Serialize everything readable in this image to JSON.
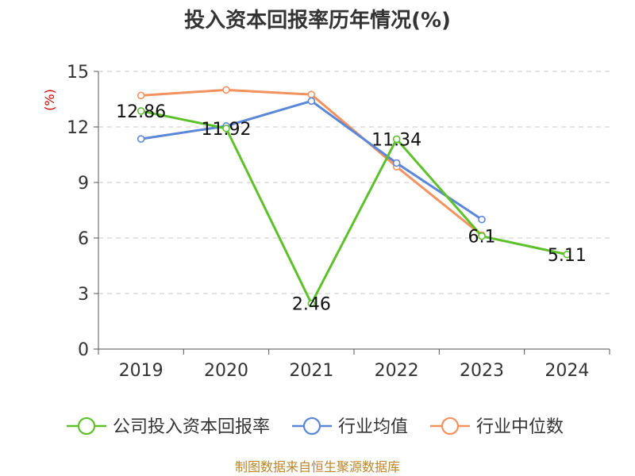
{
  "chart_data": {
    "type": "line",
    "title": "投入资本回报率历年情况(%)",
    "ylabel": "(%)",
    "xlabel": "",
    "categories": [
      "2019",
      "2020",
      "2021",
      "2022",
      "2023",
      "2024"
    ],
    "ylim": [
      0,
      15
    ],
    "yticks": [
      0,
      3,
      6,
      9,
      12,
      15
    ],
    "grid": "horizontal-dashed",
    "legend_position": "bottom",
    "series": [
      {
        "name": "公司投入资本回报率",
        "color": "#5ec12c",
        "values": [
          12.86,
          11.92,
          2.46,
          11.34,
          6.1,
          5.11
        ],
        "labels": [
          "12.86",
          "11.92",
          "2.46",
          "11.34",
          "6.1",
          "5.11"
        ]
      },
      {
        "name": "行业均值",
        "color": "#5b87d8",
        "values": [
          11.35,
          12.05,
          13.4,
          10.05,
          7.0,
          null
        ]
      },
      {
        "name": "行业中位数",
        "color": "#f3925f",
        "values": [
          13.7,
          14.0,
          13.75,
          9.85,
          6.15,
          null
        ]
      }
    ]
  },
  "source": "制图数据来自恒生聚源数据库"
}
